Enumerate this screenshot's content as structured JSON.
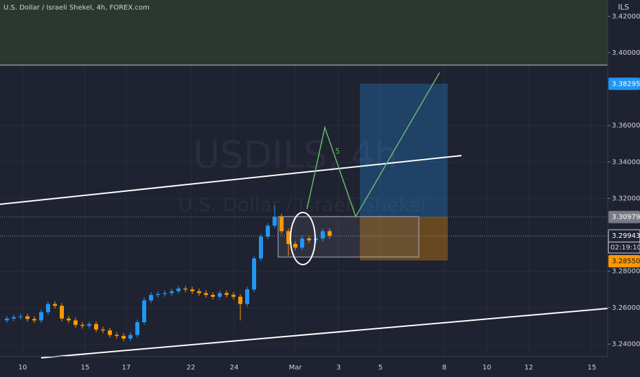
{
  "header": {
    "symbol_line": "U.S. Dollar / Israeli Shekel, 4h, FOREX.com"
  },
  "watermark": {
    "symbol": "USDILS, 4h",
    "description": "U.S. Dollar / Israeli Shekel"
  },
  "chart_data": {
    "type": "candlestick",
    "currency": "ILS",
    "up_color": "#2196f3",
    "down_color": "#ff9800",
    "open": [
      3.253,
      3.254,
      3.2548,
      3.2552,
      3.2538,
      3.253,
      3.2575,
      3.262,
      3.261,
      3.254,
      3.253,
      3.2505,
      3.25,
      3.251,
      3.248,
      3.2475,
      3.245,
      3.2445,
      3.243,
      3.245,
      3.252,
      3.264,
      3.267,
      3.2675,
      3.268,
      3.269,
      3.2705,
      3.27,
      3.269,
      3.268,
      3.267,
      3.266,
      3.268,
      3.267,
      3.266,
      3.262,
      3.27,
      3.287,
      3.299,
      3.305,
      3.31,
      3.302,
      3.295,
      3.293,
      3.298,
      3.297,
      3.298,
      3.302
    ],
    "high": [
      3.2555,
      3.2563,
      3.2567,
      3.2567,
      3.2553,
      3.259,
      3.2635,
      3.2635,
      3.2625,
      3.2555,
      3.2545,
      3.252,
      3.2525,
      3.2525,
      3.2495,
      3.249,
      3.2465,
      3.246,
      3.2465,
      3.2535,
      3.2655,
      3.2685,
      3.269,
      3.2695,
      3.2705,
      3.272,
      3.272,
      3.2715,
      3.2705,
      3.2695,
      3.2685,
      3.2695,
      3.2695,
      3.2685,
      3.2675,
      3.2715,
      3.2885,
      3.3005,
      3.3065,
      3.316,
      3.3115,
      3.3035,
      3.2965,
      3.2995,
      3.2995,
      3.2995,
      3.3035,
      3.3035
    ],
    "low": [
      3.2515,
      3.2525,
      3.2533,
      3.2523,
      3.2515,
      3.2515,
      3.256,
      3.2595,
      3.2525,
      3.2515,
      3.249,
      3.2485,
      3.2485,
      3.2465,
      3.246,
      3.2435,
      3.243,
      3.2415,
      3.2415,
      3.2435,
      3.2505,
      3.2625,
      3.2655,
      3.266,
      3.2665,
      3.2675,
      3.2685,
      3.2675,
      3.2665,
      3.2655,
      3.2645,
      3.2645,
      3.2655,
      3.2645,
      3.253,
      3.2605,
      3.2685,
      3.2855,
      3.2975,
      3.3035,
      3.3005,
      3.2885,
      3.2915,
      3.2915,
      3.2955,
      3.2955,
      3.2965,
      3.2979
    ],
    "close": [
      3.254,
      3.2548,
      3.2552,
      3.2538,
      3.253,
      3.2575,
      3.262,
      3.261,
      3.254,
      3.253,
      3.2505,
      3.25,
      3.251,
      3.248,
      3.2475,
      3.245,
      3.2445,
      3.243,
      3.245,
      3.252,
      3.264,
      3.267,
      3.2675,
      3.268,
      3.269,
      3.2705,
      3.27,
      3.269,
      3.268,
      3.267,
      3.266,
      3.268,
      3.267,
      3.266,
      3.262,
      3.27,
      3.287,
      3.299,
      3.305,
      3.31,
      3.302,
      3.295,
      3.293,
      3.298,
      3.297,
      3.298,
      3.302,
      3.2994
    ],
    "ylim": [
      3.2332,
      3.429
    ],
    "yticks": [
      {
        "value": 3.42,
        "label": "3.42000"
      },
      {
        "value": 3.4,
        "label": "3.40000"
      },
      {
        "value": 3.36,
        "label": "3.36000"
      },
      {
        "value": 3.34,
        "label": "3.34000"
      },
      {
        "value": 3.32,
        "label": "3.32000"
      },
      {
        "value": 3.28,
        "label": "3.28000"
      },
      {
        "value": 3.26,
        "label": "3.26000"
      },
      {
        "value": 3.24,
        "label": "3.24000"
      }
    ],
    "xlim": [
      -1,
      87.5
    ],
    "xticks": [
      {
        "value": 2.3,
        "label": "10"
      },
      {
        "value": 11.4,
        "label": "15"
      },
      {
        "value": 17.4,
        "label": "17"
      },
      {
        "value": 26.8,
        "label": "22"
      },
      {
        "value": 33.1,
        "label": "24"
      },
      {
        "value": 42,
        "label": "Mar"
      },
      {
        "value": 48.3,
        "label": "3"
      },
      {
        "value": 54.4,
        "label": "5"
      },
      {
        "value": 63.7,
        "label": "8"
      },
      {
        "value": 69.9,
        "label": "10"
      },
      {
        "value": 76,
        "label": "12"
      },
      {
        "value": 85.2,
        "label": "15"
      }
    ],
    "price_labels": [
      {
        "value": 3.38295,
        "color": "#2196f3",
        "text_color": "#ffffff",
        "line": false
      },
      {
        "value": 3.30979,
        "color": "#787b86",
        "text_color": "#ffffff",
        "line": true
      },
      {
        "value": 3.29943,
        "color": "#1f2230",
        "text_color": "#ffffff",
        "line": true
      },
      {
        "value": 3.2855,
        "label": "3.28550",
        "color": "#ff9800",
        "text_color": "#131722",
        "line": false
      }
    ],
    "countdown": "02:19:10",
    "annotation": "5"
  }
}
